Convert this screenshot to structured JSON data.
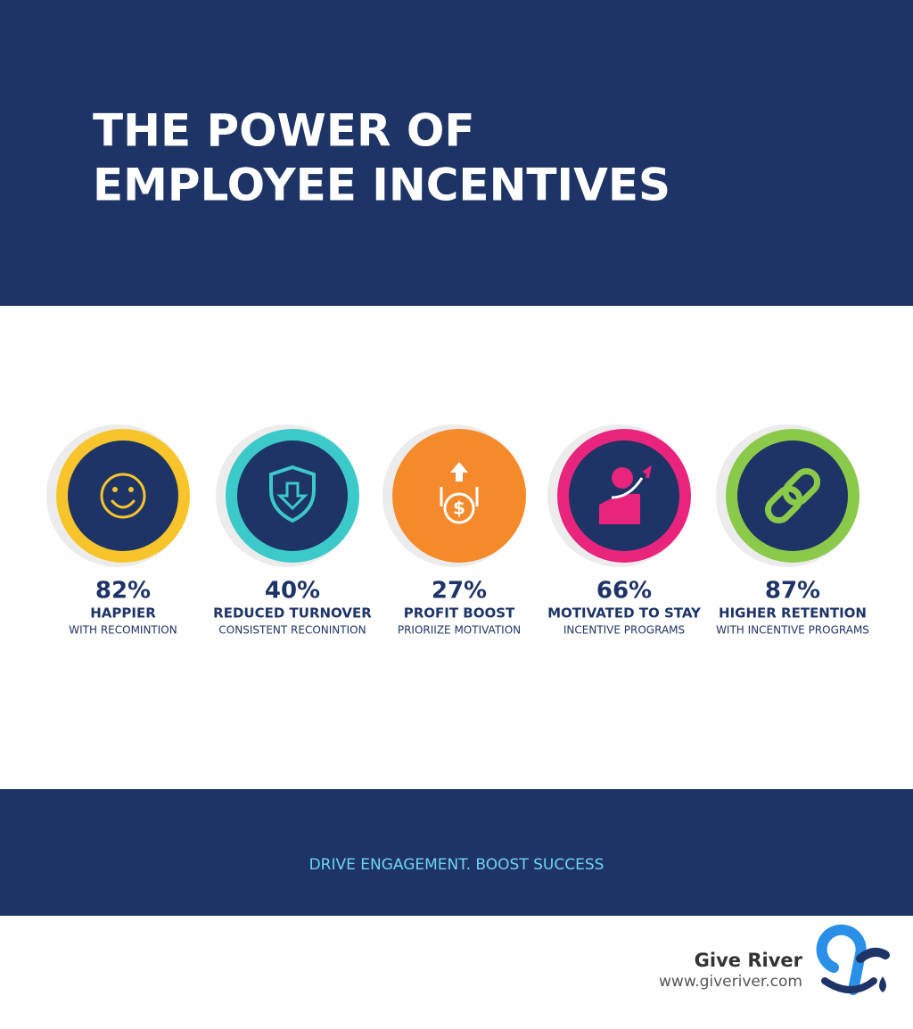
{
  "header": {
    "title_lines": [
      "THE POWER OF",
      "EMPLOYEE INCENTIVES"
    ]
  },
  "stats": [
    {
      "value": "82%",
      "label": "HAPPIER",
      "sublabel": "WITH RECOMINTION"
    },
    {
      "value": "40%",
      "label": "REDUCED TURNOVER",
      "sublabel": "CONSISTENT RECONINTION"
    },
    {
      "value": "27%",
      "label": "PROFIT BOOST",
      "sublabel": "PRIORIIZE MOTIVATION"
    },
    {
      "value": "66%",
      "label": "MOTIVATED TO STAY",
      "sublabel": "INCENTIVE PROGRAMS"
    },
    {
      "value": "87%",
      "label": "HIGHER RETENTION",
      "sublabel": "WITH INCENTIVE PROGRAMS"
    }
  ],
  "tagline": "DRIVE ENGAGEMENT. BOOST SUCCESS",
  "brand": {
    "name": "Give River",
    "url": "www.giveriver.com"
  }
}
